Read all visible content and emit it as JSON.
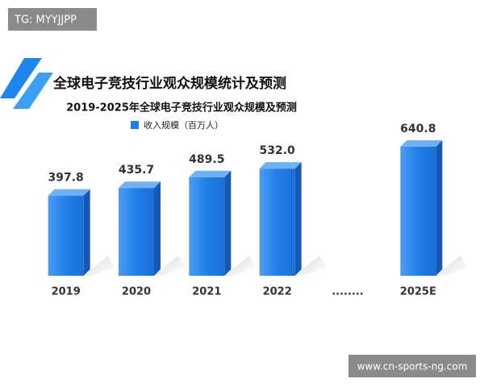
{
  "watermark": "TG: MYYJJPP",
  "heading": "全球电子竞技行业观众规模统计及预测",
  "footer": "www.cn-sports-ng.com",
  "chart_data": {
    "type": "bar",
    "title": "2019-2025年全球电子竞技行业观众规模及预测",
    "categories": [
      "2019",
      "2020",
      "2021",
      "2022",
      "........",
      "2025E"
    ],
    "series": [
      {
        "name": "收入规模（百万人）",
        "color": "#1f7fe8",
        "values": [
          397.8,
          435.7,
          489.5,
          532.0,
          null,
          640.8
        ],
        "value_labels": [
          "397.8",
          "435.7",
          "489.5",
          "532.0",
          null,
          "640.8"
        ]
      }
    ]
  }
}
